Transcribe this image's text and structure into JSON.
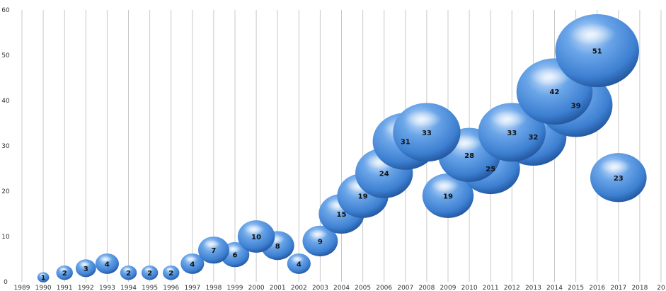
{
  "chart_data": {
    "type": "bubble",
    "title": "",
    "xlabel": "",
    "ylabel": "",
    "xlim": [
      1989,
      2019
    ],
    "ylim": [
      0,
      60
    ],
    "x_ticks": [
      "1989",
      "1990",
      "1991",
      "1992",
      "1993",
      "1994",
      "1995",
      "1996",
      "1997",
      "1998",
      "1999",
      "2000",
      "2001",
      "2002",
      "2003",
      "2004",
      "2005",
      "2006",
      "2007",
      "2008",
      "2009",
      "2010",
      "2011",
      "2012",
      "2013",
      "2014",
      "2015",
      "2016",
      "2017",
      "2018",
      "20"
    ],
    "y_ticks": [
      "0",
      "10",
      "20",
      "30",
      "40",
      "50",
      "60"
    ],
    "grid": "vertical",
    "points": [
      {
        "x": 1990,
        "y": 1,
        "label": "1"
      },
      {
        "x": 1991,
        "y": 2,
        "label": "2"
      },
      {
        "x": 1992,
        "y": 3,
        "label": "3"
      },
      {
        "x": 1993,
        "y": 4,
        "label": "4"
      },
      {
        "x": 1994,
        "y": 2,
        "label": "2"
      },
      {
        "x": 1995,
        "y": 2,
        "label": "2"
      },
      {
        "x": 1996,
        "y": 2,
        "label": "2"
      },
      {
        "x": 1997,
        "y": 4,
        "label": "4"
      },
      {
        "x": 1998,
        "y": 7,
        "label": "7"
      },
      {
        "x": 1999,
        "y": 6,
        "label": "6"
      },
      {
        "x": 2000,
        "y": 10,
        "label": "10"
      },
      {
        "x": 2001,
        "y": 8,
        "label": "8"
      },
      {
        "x": 2002,
        "y": 4,
        "label": "4"
      },
      {
        "x": 2003,
        "y": 9,
        "label": "9"
      },
      {
        "x": 2004,
        "y": 15,
        "label": "15"
      },
      {
        "x": 2005,
        "y": 19,
        "label": "19"
      },
      {
        "x": 2006,
        "y": 24,
        "label": "24"
      },
      {
        "x": 2007,
        "y": 31,
        "label": "31"
      },
      {
        "x": 2008,
        "y": 33,
        "label": "33"
      },
      {
        "x": 2009,
        "y": 19,
        "label": "19"
      },
      {
        "x": 2010,
        "y": 28,
        "label": "28"
      },
      {
        "x": 2011,
        "y": 25,
        "label": "25"
      },
      {
        "x": 2012,
        "y": 33,
        "label": "33"
      },
      {
        "x": 2013,
        "y": 32,
        "label": "32"
      },
      {
        "x": 2014,
        "y": 42,
        "label": "42"
      },
      {
        "x": 2015,
        "y": 39,
        "label": "39"
      },
      {
        "x": 2016,
        "y": 51,
        "label": "51"
      },
      {
        "x": 2017,
        "y": 23,
        "label": "23"
      }
    ],
    "colors": {
      "bubble": "#3d7fd1",
      "bubble_light": "#a9cdf5",
      "bubble_dark": "#1d4f95"
    }
  }
}
